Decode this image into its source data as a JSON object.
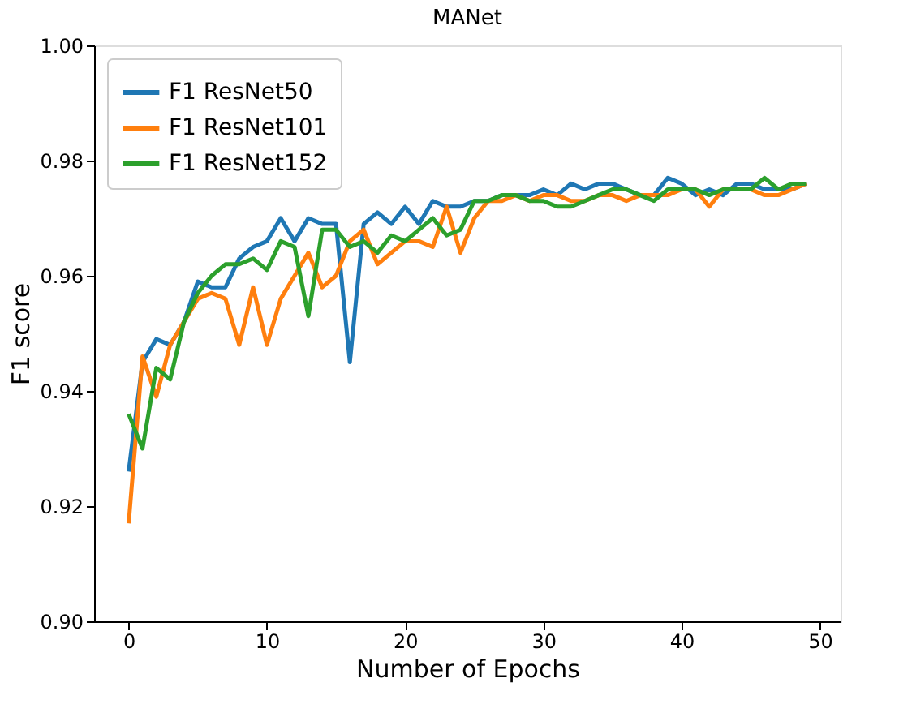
{
  "chart_data": {
    "type": "line",
    "title": "MANet",
    "xlabel": "Number of Epochs",
    "ylabel": "F1 score",
    "x": [
      0,
      1,
      2,
      3,
      4,
      5,
      6,
      7,
      8,
      9,
      10,
      11,
      12,
      13,
      14,
      15,
      16,
      17,
      18,
      19,
      20,
      21,
      22,
      23,
      24,
      25,
      26,
      27,
      28,
      29,
      30,
      31,
      32,
      33,
      34,
      35,
      36,
      37,
      38,
      39,
      40,
      41,
      42,
      43,
      44,
      45,
      46,
      47,
      48,
      49
    ],
    "series": [
      {
        "name": "F1 ResNet50",
        "color": "#1f77b4",
        "values": [
          0.926,
          0.945,
          0.949,
          0.948,
          0.952,
          0.959,
          0.958,
          0.958,
          0.963,
          0.965,
          0.966,
          0.97,
          0.966,
          0.97,
          0.969,
          0.969,
          0.945,
          0.969,
          0.971,
          0.969,
          0.972,
          0.969,
          0.973,
          0.972,
          0.972,
          0.973,
          0.973,
          0.974,
          0.974,
          0.974,
          0.975,
          0.974,
          0.976,
          0.975,
          0.976,
          0.976,
          0.975,
          0.974,
          0.974,
          0.977,
          0.976,
          0.974,
          0.975,
          0.974,
          0.976,
          0.976,
          0.975,
          0.975,
          0.975,
          0.976
        ]
      },
      {
        "name": "F1 ResNet101",
        "color": "#ff7f0e",
        "values": [
          0.917,
          0.946,
          0.939,
          0.948,
          0.952,
          0.956,
          0.957,
          0.956,
          0.948,
          0.958,
          0.948,
          0.956,
          0.96,
          0.964,
          0.958,
          0.96,
          0.966,
          0.968,
          0.962,
          0.964,
          0.966,
          0.966,
          0.965,
          0.972,
          0.964,
          0.97,
          0.973,
          0.973,
          0.974,
          0.973,
          0.974,
          0.974,
          0.973,
          0.973,
          0.974,
          0.974,
          0.973,
          0.974,
          0.974,
          0.974,
          0.975,
          0.975,
          0.972,
          0.975,
          0.975,
          0.975,
          0.974,
          0.974,
          0.975,
          0.976
        ]
      },
      {
        "name": "F1 ResNet152",
        "color": "#2ca02c",
        "values": [
          0.936,
          0.93,
          0.944,
          0.942,
          0.952,
          0.957,
          0.96,
          0.962,
          0.962,
          0.963,
          0.961,
          0.966,
          0.965,
          0.953,
          0.968,
          0.968,
          0.965,
          0.966,
          0.964,
          0.967,
          0.966,
          0.968,
          0.97,
          0.967,
          0.968,
          0.973,
          0.973,
          0.974,
          0.974,
          0.973,
          0.973,
          0.972,
          0.972,
          0.973,
          0.974,
          0.975,
          0.975,
          0.974,
          0.973,
          0.975,
          0.975,
          0.975,
          0.974,
          0.975,
          0.975,
          0.975,
          0.977,
          0.975,
          0.976,
          0.976
        ]
      }
    ],
    "xlim": [
      -2.5,
      51.5
    ],
    "xticks": [
      0,
      10,
      20,
      30,
      40,
      50
    ],
    "ylim": [
      0.9,
      1.0
    ],
    "yticks": [
      {
        "value": 0.9,
        "label": "0.90"
      },
      {
        "value": 0.92,
        "label": "0.92"
      },
      {
        "value": 0.94,
        "label": "0.94"
      },
      {
        "value": 0.96,
        "label": "0.96"
      },
      {
        "value": 0.98,
        "label": "0.98"
      },
      {
        "value": 1.0,
        "label": "1.00"
      }
    ],
    "legend": "top left",
    "grid": false
  }
}
